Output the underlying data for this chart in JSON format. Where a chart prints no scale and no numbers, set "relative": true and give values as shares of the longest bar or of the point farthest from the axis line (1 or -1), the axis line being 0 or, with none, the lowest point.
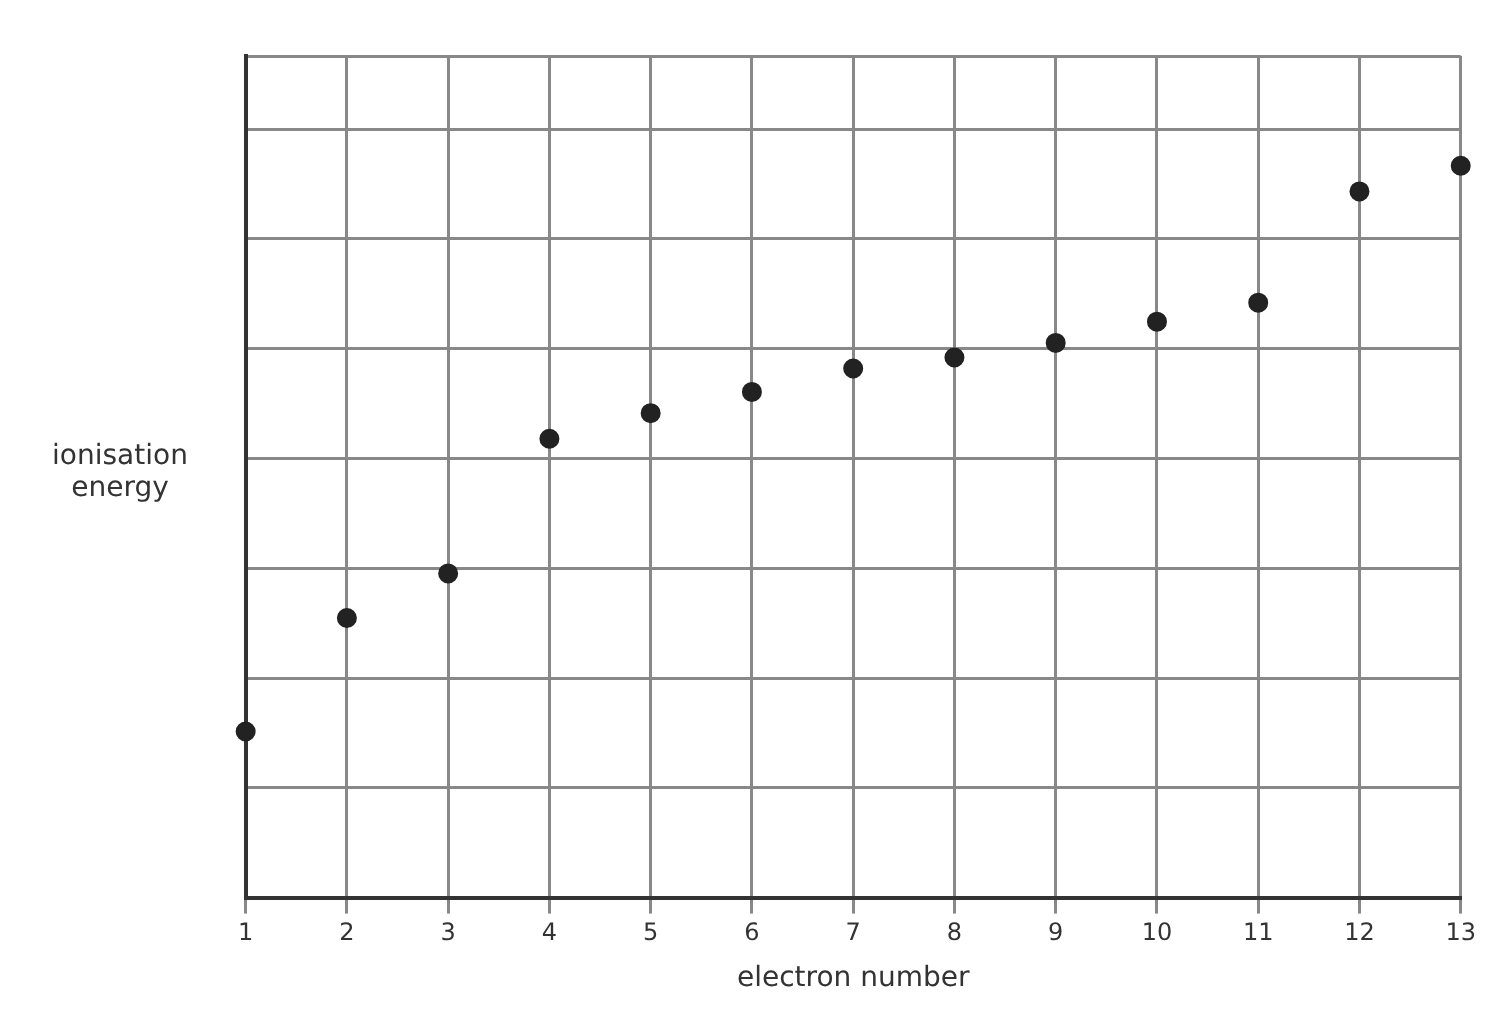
{
  "chart_data": {
    "type": "scatter",
    "xlabel": "electron number",
    "ylabel": "ionisation energy",
    "relative": true,
    "x": [
      1,
      2,
      3,
      4,
      5,
      6,
      7,
      8,
      9,
      10,
      11,
      12,
      13
    ],
    "series": [
      {
        "color": "#222222",
        "values": [
          0.227,
          0.382,
          0.443,
          0.627,
          0.662,
          0.691,
          0.723,
          0.738,
          0.758,
          0.787,
          0.813,
          0.965,
          1
        ]
      }
    ],
    "xlim": [
      1,
      13
    ],
    "xticks": [
      1,
      2,
      3,
      4,
      5,
      6,
      7,
      8,
      9,
      10,
      11,
      12,
      13
    ],
    "grid": true,
    "legend": false,
    "marker": "circle"
  }
}
